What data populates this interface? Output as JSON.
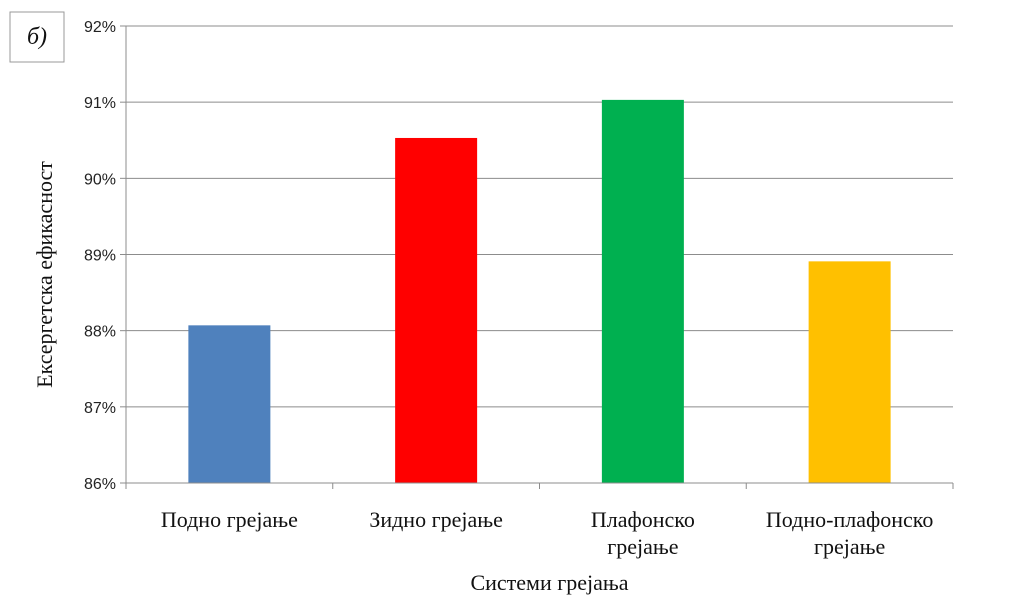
{
  "chart_data": {
    "type": "bar",
    "panel_label": "б)",
    "categories": [
      [
        "Подно грејање"
      ],
      [
        "Зидно грејање"
      ],
      [
        "Плафонско",
        "грејање"
      ],
      [
        "Подно-плафонско",
        "грејање"
      ]
    ],
    "values": [
      88.07,
      90.53,
      91.03,
      88.91
    ],
    "colors": [
      "#4f81bd",
      "#ff0000",
      "#00b050",
      "#ffc000"
    ],
    "ylim": [
      86,
      92
    ],
    "yticks": [
      86,
      87,
      88,
      89,
      90,
      91,
      92
    ],
    "ytick_suffix": "%",
    "xlabel": "Системи грејања",
    "ylabel": "Ексергетска ефикасност",
    "grid": true,
    "legend": "none"
  }
}
